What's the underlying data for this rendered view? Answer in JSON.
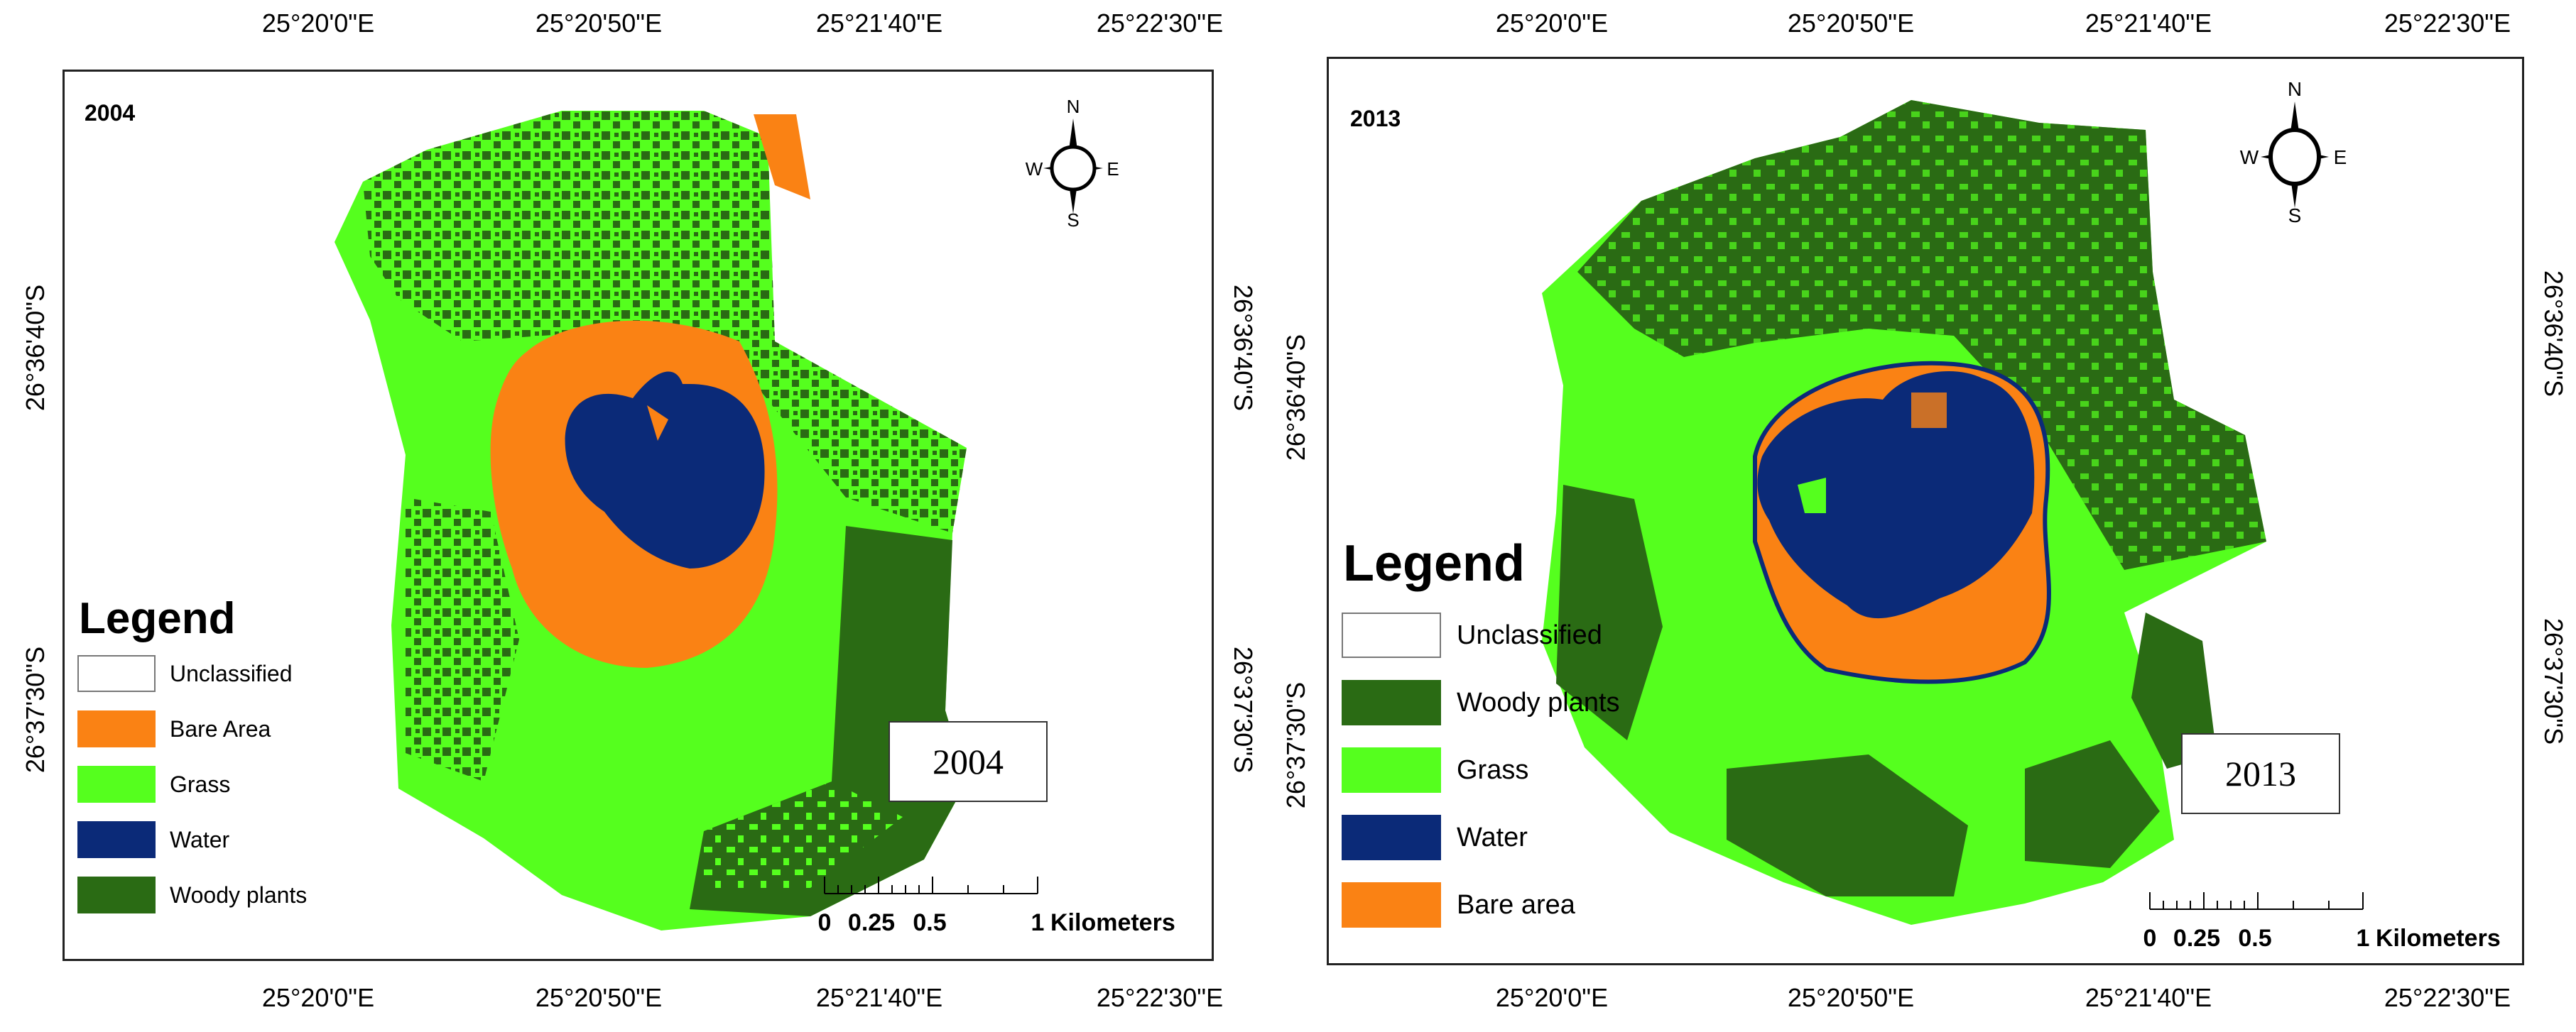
{
  "colors": {
    "water": "#0b2a78",
    "bare": "#fa8214",
    "grass": "#55ff1e",
    "woody": "#2a6b14",
    "unclassified": "#ffffff"
  },
  "icons": [
    "north-arrow-compass-icon",
    "scale-bar-icon"
  ],
  "panels": [
    {
      "year_tag": "2004",
      "box_label": "2004",
      "top_ticks": [
        "25°20'0\"E",
        "25°20'50\"E",
        "25°21'40\"E",
        "25°22'30\"E"
      ],
      "bottom_ticks": [
        "25°20'0\"E",
        "25°20'50\"E",
        "25°21'40\"E",
        "25°22'30\"E"
      ],
      "left_ticks": [
        "26°36'40\"S",
        "26°37'30\"S"
      ],
      "right_ticks": [
        "26°36'40\"S",
        "26°37'30\"S"
      ],
      "compass": {
        "n": "N",
        "s": "S",
        "e": "E",
        "w": "W"
      },
      "legend": {
        "title": "Legend",
        "items": [
          {
            "label": "Unclassified",
            "color": "#ffffff"
          },
          {
            "label": "Bare Area",
            "color": "#fa8214"
          },
          {
            "label": "Grass",
            "color": "#55ff1e"
          },
          {
            "label": "Water",
            "color": "#0b2a78"
          },
          {
            "label": "Woody plants",
            "color": "#2a6b14"
          }
        ]
      },
      "scale": {
        "labels": [
          "0",
          "0.25",
          "0.5",
          "1"
        ],
        "unit": "Kilometers"
      }
    },
    {
      "year_tag": "2013",
      "box_label": "2013",
      "top_ticks": [
        "25°20'0\"E",
        "25°20'50\"E",
        "25°21'40\"E",
        "25°22'30\"E"
      ],
      "bottom_ticks": [
        "25°20'0\"E",
        "25°20'50\"E",
        "25°21'40\"E",
        "25°22'30\"E"
      ],
      "left_ticks": [
        "26°36'40\"S",
        "26°37'30\"S"
      ],
      "right_ticks": [
        "26°36'40\"S",
        "26°37'30\"S"
      ],
      "compass": {
        "n": "N",
        "s": "S",
        "e": "E",
        "w": "W"
      },
      "legend": {
        "title": "Legend",
        "items": [
          {
            "label": "Unclassified",
            "color": "#ffffff"
          },
          {
            "label": "Woody plants",
            "color": "#2a6b14"
          },
          {
            "label": "Grass",
            "color": "#55ff1e"
          },
          {
            "label": "Water",
            "color": "#0b2a78"
          },
          {
            "label": "Bare area",
            "color": "#fa8214"
          }
        ]
      },
      "scale": {
        "labels": [
          "0",
          "0.25",
          "0.5",
          "1"
        ],
        "unit": "Kilometers"
      }
    }
  ]
}
